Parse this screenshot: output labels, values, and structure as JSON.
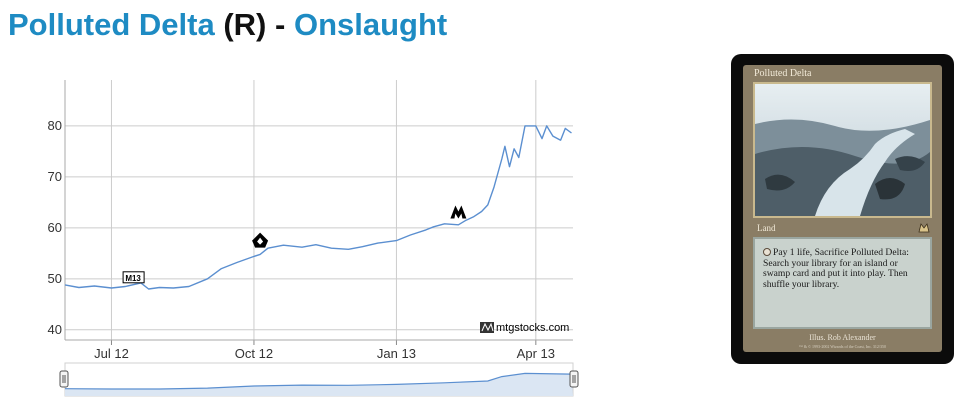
{
  "header": {
    "card_name": "Polluted Delta",
    "rarity": "(R)",
    "separator": "-",
    "set_name": "Onslaught"
  },
  "chart_data": {
    "type": "line",
    "title": "",
    "xlabel": "",
    "ylabel": "",
    "x_ticks": [
      "Jul 12",
      "Oct 12",
      "Jan 13",
      "Apr 13"
    ],
    "y_ticks": [
      "40",
      "50",
      "60",
      "70",
      "80"
    ],
    "ylim": [
      38,
      89
    ],
    "grid": true,
    "series_color": "#5b8fd0",
    "series": [
      {
        "values": [
          [
            "2012-06-01",
            48.8
          ],
          [
            "2012-06-10",
            48.3
          ],
          [
            "2012-06-20",
            48.6
          ],
          [
            "2012-07-01",
            48.2
          ],
          [
            "2012-07-10",
            48.5
          ],
          [
            "2012-07-20",
            49.2
          ],
          [
            "2012-07-25",
            48.0
          ],
          [
            "2012-08-01",
            48.3
          ],
          [
            "2012-08-10",
            48.2
          ],
          [
            "2012-08-20",
            48.5
          ],
          [
            "2012-09-01",
            50.0
          ],
          [
            "2012-09-10",
            52.0
          ],
          [
            "2012-09-20",
            53.2
          ],
          [
            "2012-10-01",
            54.4
          ],
          [
            "2012-10-05",
            54.8
          ],
          [
            "2012-10-10",
            56.0
          ],
          [
            "2012-10-20",
            56.6
          ],
          [
            "2012-11-01",
            56.2
          ],
          [
            "2012-11-10",
            56.7
          ],
          [
            "2012-11-20",
            56.0
          ],
          [
            "2012-12-01",
            55.8
          ],
          [
            "2012-12-10",
            56.3
          ],
          [
            "2012-12-20",
            57.0
          ],
          [
            "2013-01-01",
            57.5
          ],
          [
            "2013-01-10",
            58.6
          ],
          [
            "2013-01-20",
            59.6
          ],
          [
            "2013-01-25",
            60.2
          ],
          [
            "2013-02-01",
            60.8
          ],
          [
            "2013-02-10",
            60.6
          ],
          [
            "2013-02-15",
            61.5
          ],
          [
            "2013-02-20",
            62.2
          ],
          [
            "2013-02-25",
            63.2
          ],
          [
            "2013-03-01",
            64.5
          ],
          [
            "2013-03-05",
            68.0
          ],
          [
            "2013-03-10",
            73.5
          ],
          [
            "2013-03-12",
            76.0
          ],
          [
            "2013-03-15",
            72.0
          ],
          [
            "2013-03-18",
            75.5
          ],
          [
            "2013-03-21",
            73.8
          ],
          [
            "2013-03-25",
            80.0
          ],
          [
            "2013-04-01",
            80.0
          ],
          [
            "2013-04-05",
            77.5
          ],
          [
            "2013-04-08",
            80.0
          ],
          [
            "2013-04-12",
            78.0
          ],
          [
            "2013-04-17",
            77.2
          ],
          [
            "2013-04-20",
            79.5
          ],
          [
            "2013-04-24",
            78.6
          ]
        ]
      }
    ],
    "overview_values": [
      [
        "2012-06-01",
        48.8
      ],
      [
        "2012-07-01",
        48.2
      ],
      [
        "2012-08-01",
        48.3
      ],
      [
        "2012-09-01",
        50.0
      ],
      [
        "2012-10-01",
        54.4
      ],
      [
        "2012-11-01",
        56.2
      ],
      [
        "2012-12-01",
        55.8
      ],
      [
        "2013-01-01",
        57.5
      ],
      [
        "2013-02-01",
        60.8
      ],
      [
        "2013-03-01",
        64.5
      ],
      [
        "2013-03-10",
        73.5
      ],
      [
        "2013-03-25",
        80.0
      ],
      [
        "2013-04-24",
        78.6
      ]
    ],
    "event_markers": [
      {
        "label": "M13",
        "date": "2012-07-15",
        "value": 50.2,
        "icon": "m13-set-icon"
      },
      {
        "label": "RTR",
        "date": "2012-10-05",
        "value": 57.5,
        "icon": "return-to-ravnica-set-icon"
      },
      {
        "label": "GTC",
        "date": "2013-02-10",
        "value": 63.0,
        "icon": "gatecrash-set-icon"
      }
    ],
    "watermark": "mtgstocks.com"
  },
  "card_image": {
    "name": "Polluted Delta",
    "type_line": "Land",
    "rules_text": "Pay 1 life, Sacrifice Polluted Delta: Search your library for an island or swamp card and put it into play. Then shuffle your library.",
    "artist": "Illus. Rob Alexander",
    "legal": "™ & © 1993-2002 Wizards of the Coast, Inc. 312/350"
  },
  "colors": {
    "link": "#1e8bc3",
    "line": "#5b8fd0",
    "grid": "#cccccc",
    "card_border": "#0b0b0b"
  }
}
